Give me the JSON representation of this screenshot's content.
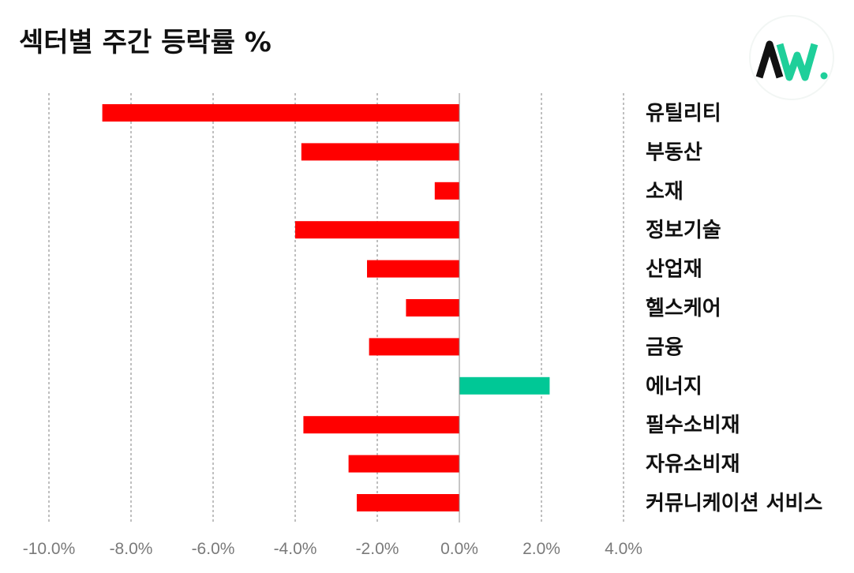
{
  "title": "섹터별 주간 등락률 %",
  "logo": {
    "text": "AW.",
    "icon": "aw-logo-icon",
    "colors": {
      "a": "#111111",
      "w": "#1fcf9a"
    }
  },
  "chart_data": {
    "type": "bar",
    "orientation": "horizontal",
    "title": "섹터별 주간 등락률 %",
    "xlabel": "",
    "ylabel": "",
    "xlim": [
      -10,
      4
    ],
    "x_ticks": [
      -10,
      -8,
      -6,
      -4,
      -2,
      0,
      2,
      4
    ],
    "x_tick_labels": [
      "-10.0%",
      "-8.0%",
      "-6.0%",
      "-4.0%",
      "-2.0%",
      "0.0%",
      "2.0%",
      "4.0%"
    ],
    "grid": "vertical-dashed",
    "categories": [
      "유틸리티",
      "부동산",
      "소재",
      "정보기술",
      "산업재",
      "헬스케어",
      "금융",
      "에너지",
      "필수소비재",
      "자유소비재",
      "커뮤니케이션 서비스"
    ],
    "values": [
      -8.7,
      -3.85,
      -0.6,
      -4.0,
      -2.25,
      -1.3,
      -2.2,
      2.2,
      -3.8,
      -2.7,
      -2.5
    ],
    "colors": {
      "negative": "#ff0000",
      "positive": "#00c896"
    }
  }
}
